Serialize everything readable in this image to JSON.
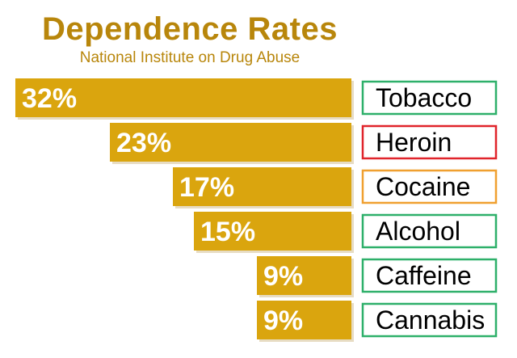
{
  "chart_data": {
    "type": "bar",
    "orientation": "horizontal",
    "title": "Dependence Rates",
    "subtitle": "National Institute on Drug Abuse",
    "categories": [
      "Tobacco",
      "Heroin",
      "Cocaine",
      "Alcohol",
      "Caffeine",
      "Cannabis"
    ],
    "values": [
      32,
      23,
      17,
      15,
      9,
      9
    ],
    "value_labels": [
      "32%",
      "23%",
      "17%",
      "15%",
      "9%",
      "9%"
    ],
    "label_position": "right",
    "bar_color": "#daa50e",
    "label_border_colors": [
      "#2eb06a",
      "#e0242b",
      "#f0a030",
      "#2eb06a",
      "#2eb06a",
      "#2eb06a"
    ],
    "legend": "none",
    "grid": false
  }
}
